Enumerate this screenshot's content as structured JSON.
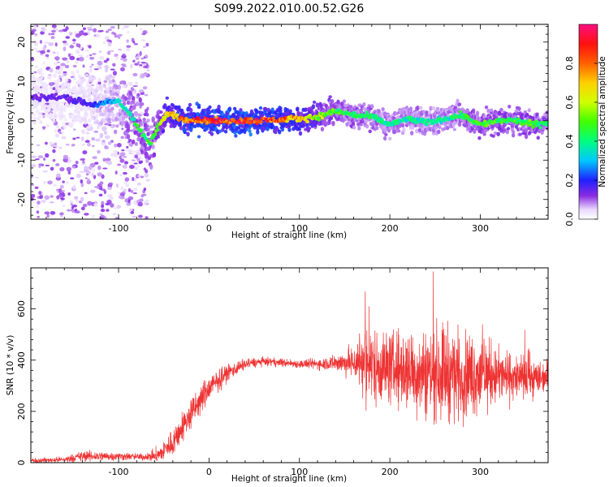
{
  "figure": {
    "title": "S099.2022.010.00.52.G26"
  },
  "chart_data": [
    {
      "type": "heatmap",
      "title": "S099.2022.010.00.52.G26",
      "xlabel": "Height of straight line (km)",
      "ylabel": "Frequency (Hz)",
      "xlim": [
        -197,
        375
      ],
      "ylim": [
        -25,
        24.5
      ],
      "xticks": [
        -100,
        0,
        100,
        200,
        300
      ],
      "yticks": [
        -20,
        -10,
        0,
        10,
        20
      ],
      "colorbar": {
        "label": "Normalized spectral amplitude",
        "range": [
          0,
          1
        ],
        "ticks": [
          "0.0",
          "0.2",
          "0.4",
          "0.6",
          "0.8"
        ],
        "colormap": "rainbow (white-violet-blue-cyan-green-yellow-orange-red-magenta)"
      },
      "ridge": {
        "description": "frequency trace of maximum amplitude vs height",
        "x": [
          -160,
          -130,
          -100,
          -85,
          -75,
          -65,
          -55,
          -45,
          -30,
          0,
          50,
          100,
          120,
          140,
          160,
          180,
          200,
          220,
          240,
          260,
          280,
          300,
          320,
          340,
          360,
          375
        ],
        "y": [
          6,
          4,
          5,
          1,
          -3,
          -6,
          -1,
          2,
          0.5,
          0,
          0,
          0.5,
          1,
          2.5,
          1.5,
          1,
          -1,
          0.5,
          -0.5,
          0.5,
          1.5,
          -1,
          0,
          0,
          -1,
          -0.5
        ],
        "amplitude": [
          0.15,
          0.2,
          0.35,
          0.45,
          0.5,
          0.45,
          0.6,
          0.7,
          0.85,
          0.95,
          0.95,
          0.8,
          0.6,
          0.5,
          0.45,
          0.45,
          0.4,
          0.4,
          0.4,
          0.4,
          0.45,
          0.5,
          0.5,
          0.5,
          0.5,
          0.5
        ]
      }
    },
    {
      "type": "line",
      "xlabel": "Height of straight line (km)",
      "ylabel": "SNR (10 * v/v)",
      "xlim": [
        -197,
        375
      ],
      "ylim": [
        0,
        760
      ],
      "xticks": [
        -100,
        0,
        100,
        200,
        300
      ],
      "yticks": [
        0,
        200,
        400,
        600
      ],
      "color": "#ee3333",
      "envelope": {
        "x": [
          -197,
          -160,
          -140,
          -100,
          -70,
          -55,
          -40,
          -20,
          0,
          20,
          40,
          60,
          80,
          100,
          120,
          140,
          160,
          170,
          180,
          200,
          220,
          240,
          260,
          280,
          300,
          320,
          340,
          360,
          375
        ],
        "mean": [
          8,
          12,
          25,
          25,
          22,
          30,
          80,
          190,
          290,
          350,
          385,
          395,
          390,
          385,
          385,
          390,
          390,
          400,
          380,
          370,
          360,
          350,
          360,
          340,
          350,
          340,
          330,
          330,
          340
        ],
        "spread": [
          8,
          10,
          20,
          15,
          12,
          30,
          50,
          60,
          50,
          30,
          20,
          15,
          15,
          15,
          20,
          30,
          60,
          130,
          140,
          130,
          150,
          160,
          180,
          150,
          150,
          100,
          80,
          70,
          60
        ]
      }
    }
  ]
}
